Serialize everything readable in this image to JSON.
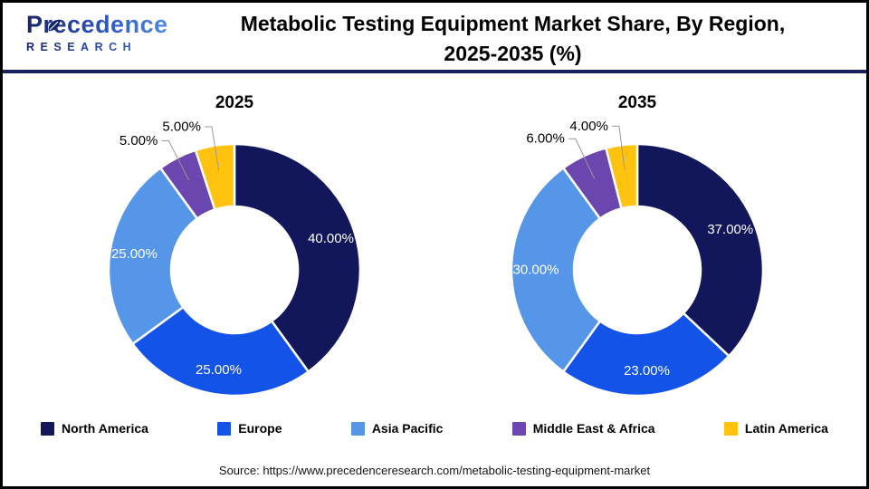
{
  "header": {
    "logo": {
      "name": "Precedence",
      "subtitle": "RESEARCH"
    },
    "title_line1": "Metabolic Testing Equipment Market Share, By Region,",
    "title_line2": "2025-2035 (%)",
    "divider_color": "#1A2160"
  },
  "chart_data": [
    {
      "type": "pie",
      "title": "2025",
      "donut": true,
      "donut_hole_ratio": 0.5,
      "start_angle_deg": 0,
      "direction": "clockwise",
      "categories": [
        "North America",
        "Europe",
        "Asia Pacific",
        "Middle East & Africa",
        "Latin America"
      ],
      "values": [
        40,
        25,
        25,
        5,
        5
      ],
      "display_labels": [
        "40.00%",
        "25.00%",
        "25.00%",
        "5.00%",
        "5.00%"
      ],
      "colors": [
        "#12175C",
        "#1353E8",
        "#5596E8",
        "#6A46AE",
        "#FFC20E"
      ],
      "inner_label_color": "#ffffff",
      "outer_label_color": "#000000",
      "leader_line_color": "#999999"
    },
    {
      "type": "pie",
      "title": "2035",
      "donut": true,
      "donut_hole_ratio": 0.5,
      "start_angle_deg": 0,
      "direction": "clockwise",
      "categories": [
        "North America",
        "Europe",
        "Asia Pacific",
        "Middle East & Africa",
        "Latin America"
      ],
      "values": [
        37,
        23,
        30,
        6,
        4
      ],
      "display_labels": [
        "37.00%",
        "23.00%",
        "30.00%",
        "6.00%",
        "4.00%"
      ],
      "colors": [
        "#12175C",
        "#1353E8",
        "#5596E8",
        "#6A46AE",
        "#FFC20E"
      ],
      "inner_label_color": "#ffffff",
      "outer_label_color": "#000000",
      "leader_line_color": "#999999"
    }
  ],
  "legend": {
    "items": [
      {
        "label": "North America",
        "color": "#12175C"
      },
      {
        "label": "Europe",
        "color": "#1353E8"
      },
      {
        "label": "Asia Pacific",
        "color": "#5596E8"
      },
      {
        "label": "Middle East & Africa",
        "color": "#6A46AE"
      },
      {
        "label": "Latin America",
        "color": "#FFC20E"
      }
    ]
  },
  "source": "Source: https://www.precedenceresearch.com/metabolic-testing-equipment-market"
}
